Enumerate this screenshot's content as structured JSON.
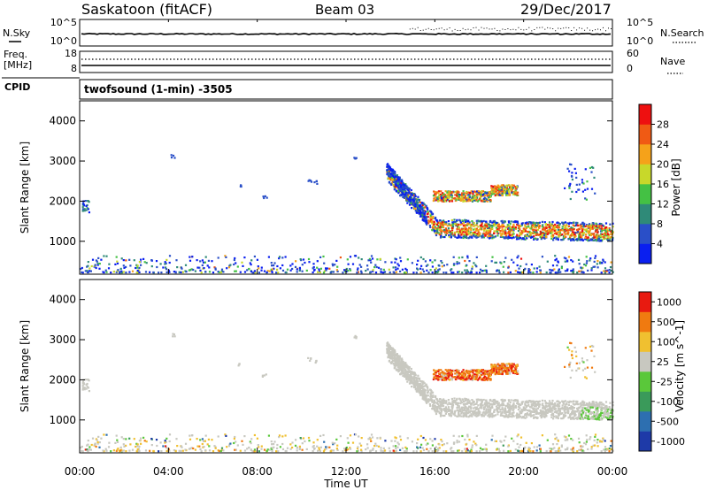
{
  "header": {
    "station": "Saskatoon (fitACF)",
    "beam": "Beam 03",
    "date": "29/Dec/2017"
  },
  "noise_panel": {
    "left_label": "N.Sky",
    "left_ticks": [
      "10^5",
      "10^0"
    ],
    "right_ticks": [
      "10^5",
      "10^0"
    ],
    "right_label": "N.Search"
  },
  "freq_panel": {
    "left_label_1": "Freq.",
    "left_label_2": "[MHz]",
    "left_ticks": [
      "18",
      "8"
    ],
    "right_ticks": [
      "60",
      "0"
    ],
    "right_label": "Nave"
  },
  "cpid_panel": {
    "label": "CPID",
    "program": "twofsound (1-min) -3505"
  },
  "chart_data": [
    {
      "type": "heatmap",
      "title": "",
      "ylabel": "Slant Range [km]",
      "ylim": [
        180,
        4500
      ],
      "yticks": [
        "1000",
        "2000",
        "3000",
        "4000"
      ],
      "colorbar_label": "Power [dB]",
      "colorbar_ticks": [
        "28",
        "24",
        "20",
        "16",
        "12",
        "8",
        "4"
      ],
      "colors": [
        "#0a1ff0",
        "#2a4fc8",
        "#2f8a78",
        "#44c144",
        "#c8d82a",
        "#f5a21a",
        "#f05a14",
        "#ee1010"
      ]
    },
    {
      "type": "heatmap",
      "title": "",
      "ylabel": "Slant Range [km]",
      "ylim": [
        180,
        4500
      ],
      "yticks": [
        "1000",
        "2000",
        "3000",
        "4000"
      ],
      "colorbar_label": "Velocity [m s^-1]",
      "colorbar_ticks": [
        "1000",
        "500",
        "100",
        "25",
        "-25",
        "-100",
        "-500",
        "-1000"
      ],
      "colors": [
        "#1e3aa8",
        "#2d6fb0",
        "#3a9a5a",
        "#5ac83a",
        "#c8c8c0",
        "#f0c030",
        "#f07a10",
        "#e81a10"
      ]
    }
  ],
  "xaxis": {
    "label": "Time UT",
    "ticks": [
      "00:00",
      "04:00",
      "08:00",
      "12:00",
      "16:00",
      "20:00",
      "00:00"
    ]
  }
}
